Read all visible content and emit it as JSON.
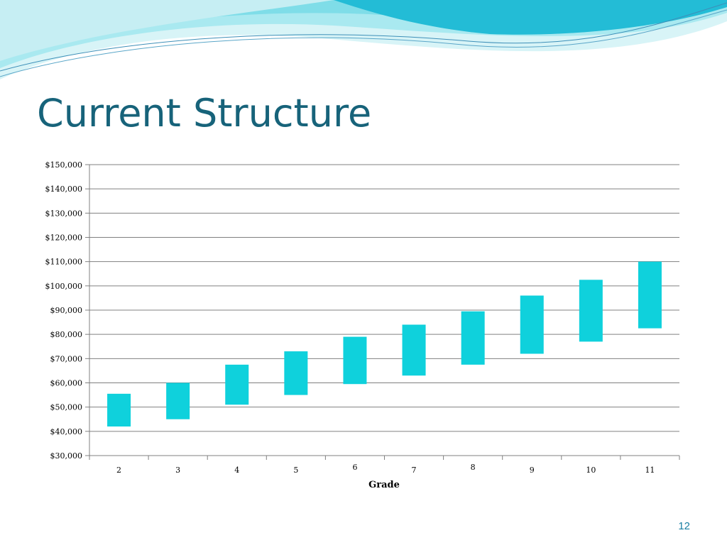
{
  "slide": {
    "title": "Current Structure",
    "page_number": "12"
  },
  "colors": {
    "bar": "#0fd1dc",
    "title": "#17637a",
    "grid": "#808080",
    "wave_light": "#d8f4f7",
    "wave_mid": "#7fdde8",
    "wave_dark": "#1fb8d4"
  },
  "chart_data": {
    "type": "bar",
    "subtype": "floating-range",
    "title": "",
    "xlabel": "Grade",
    "ylabel": "",
    "ylim": [
      30000,
      150000
    ],
    "y_ticks": [
      "$30,000",
      "$40,000",
      "$50,000",
      "$60,000",
      "$70,000",
      "$80,000",
      "$90,000",
      "$100,000",
      "$110,000",
      "$120,000",
      "$130,000",
      "$140,000",
      "$150,000"
    ],
    "grid": true,
    "legend": "none",
    "categories": [
      "2",
      "3",
      "4",
      "5",
      "6",
      "7",
      "8",
      "9",
      "10",
      "11"
    ],
    "series": [
      {
        "name": "",
        "min": [
          42000,
          45000,
          51000,
          55000,
          59500,
          63000,
          67500,
          72000,
          77000,
          82500
        ],
        "max": [
          55500,
          60000,
          67500,
          73000,
          79000,
          84000,
          89500,
          96000,
          102500,
          110000
        ]
      }
    ]
  }
}
